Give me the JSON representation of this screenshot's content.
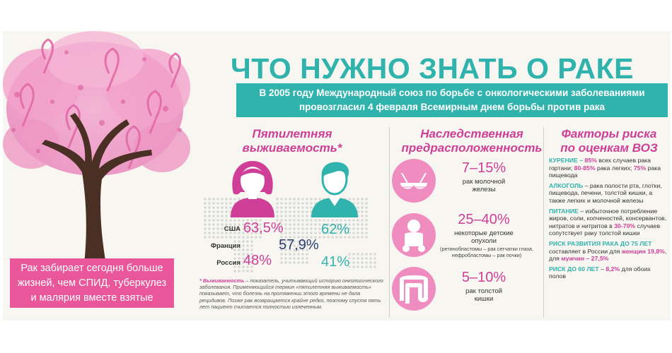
{
  "header": {
    "title": "ЧТО НУЖНО ЗНАТЬ О РАКЕ",
    "banner_line1": "В 2005 году Международный союз по борьбе с онкологическими заболеваниями",
    "banner_line2": "провозгласил 4 февраля Всемирным днем борьбы против рака"
  },
  "tree": {
    "caption_line1": "Рак забирает сегодня больше",
    "caption_line2": "жизней, чем СПИД, туберкулез",
    "caption_line3": "и малярия вместе взятые"
  },
  "survival": {
    "heading_line1": "Пятилетняя",
    "heading_line2": "выживаемость*",
    "rows": [
      {
        "country": "США",
        "female": "63,5%",
        "male": "62%"
      },
      {
        "country": "Франция",
        "combined": "57,9%"
      },
      {
        "country": "Россия",
        "female": "48%",
        "male": "41%"
      }
    ],
    "note_term": "* Выживаемость",
    "note_text": " – показатель, учитывающий историю онкологического заболевания. Применяющийся термин «пятилетняя выживаемость» показывает, что болезнь на протяжении этого времени не дала рецидивов. Позже рак возвращается крайне редко, поэтому спустя пять лет пациент считается полностью излеченным."
  },
  "heredity": {
    "heading_line1": "Наследственная",
    "heading_line2": "предрасположенность",
    "items": [
      {
        "icon": "breast-icon",
        "pct": "7–15%",
        "text_line1": "рак молочной",
        "text_line2": "железы"
      },
      {
        "icon": "baby-icon",
        "pct": "25–40%",
        "text_line1": "некоторые детские",
        "text_line2": "опухоли",
        "sub_line1": "(ретинобластомы – рак сетчатки глаза,",
        "sub_line2": "нефробластомы – рак почки)"
      },
      {
        "icon": "intestine-icon",
        "pct": "5–10%",
        "text_line1": "рак толстой",
        "text_line2": "кишки"
      }
    ]
  },
  "risk": {
    "heading_line1": "Факторы риска",
    "heading_line2": "по оценкам ВОЗ",
    "smoking_key": "КУРЕНИЕ – ",
    "smoking_p1": "85%",
    "smoking_t1": " всех случаев рака гортани; ",
    "smoking_p2": "80-85%",
    "smoking_t2": " рака легких; ",
    "smoking_p3": "75%",
    "smoking_t3": " рака пищевода",
    "alcohol_key": "АЛКОГОЛЬ",
    "alcohol_text": " – рака полости рта, глотки, пищевода, печени, толстой кишки, а также легких и молочной железы",
    "food_key": "ПИТАНИЕ",
    "food_t1": " – избыточное потребление жиров, соли, копченостей, консервантов, нитратов и нитритов в ",
    "food_p": "30-70%",
    "food_t2": " случаев сопутствует раку толстой кишки",
    "risk75_key": "РИСК РАЗВИТИЯ РАКА ДО 75 ЛЕТ",
    "risk75_t1": " составляет в России для ",
    "risk75_women": "женщин 19,8%",
    "risk75_t2": ", для ",
    "risk75_men": "мужчин – 27,5%",
    "risk60_key": "РИСК ДО 60 ЛЕТ",
    "risk60_t1": " – ",
    "risk60_p": "8,2%",
    "risk60_t2": " для обоих полов"
  },
  "colors": {
    "pink": "#cf3f98",
    "teal": "#31b3ad",
    "ribbon": "#f08dc0",
    "trunk": "#4a2f24"
  }
}
